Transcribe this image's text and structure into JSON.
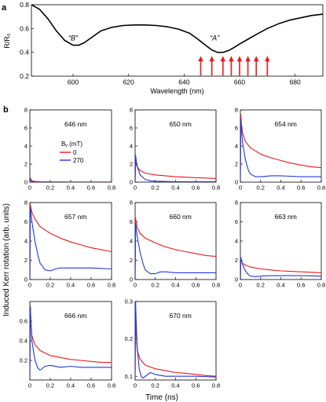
{
  "figure": {
    "panel_a_label": "a",
    "panel_b_label": "b",
    "shared_ylabel": "Induced Kerr rotation (arb. units)",
    "shared_xlabel": "Time (ns)"
  },
  "chart_data": [
    {
      "type": "line",
      "panel": "a",
      "xlabel": "Wavelength (nm)",
      "ylabel": "R/R₀",
      "xlim": [
        585,
        690
      ],
      "ylim": [
        0.2,
        0.8
      ],
      "xticks": [
        600,
        620,
        640,
        660,
        680
      ],
      "yticks": [
        0.2,
        0.4,
        0.6,
        0.8
      ],
      "annotations": [
        {
          "text": "“B”",
          "x": 600,
          "y": 0.5
        },
        {
          "text": "“A”",
          "x": 651,
          "y": 0.5
        }
      ],
      "arrow_wavelengths": [
        646,
        650,
        654,
        657,
        660,
        663,
        666,
        670
      ],
      "arrow_color": "#e8191c",
      "series": [
        {
          "color": "#000000",
          "x": [
            585,
            588,
            591,
            594,
            597,
            600,
            602,
            604,
            607,
            610,
            614,
            618,
            622,
            626,
            630,
            634,
            638,
            642,
            645,
            648,
            650,
            652,
            654,
            656,
            658,
            660,
            663,
            666,
            670,
            674,
            678,
            682,
            686,
            690
          ],
          "y": [
            0.8,
            0.76,
            0.68,
            0.58,
            0.5,
            0.46,
            0.46,
            0.48,
            0.53,
            0.58,
            0.61,
            0.625,
            0.63,
            0.63,
            0.625,
            0.615,
            0.595,
            0.56,
            0.51,
            0.455,
            0.42,
            0.4,
            0.4,
            0.415,
            0.44,
            0.47,
            0.51,
            0.55,
            0.6,
            0.64,
            0.67,
            0.69,
            0.71,
            0.72
          ]
        }
      ]
    },
    {
      "type": "line",
      "panel": "b",
      "title": "646 nm",
      "xlim": [
        0,
        0.8
      ],
      "ylim": [
        0,
        8
      ],
      "xticks": [
        0,
        0.2,
        0.4,
        0.6,
        0.8
      ],
      "yticks": [
        0,
        2,
        4,
        6,
        8
      ],
      "legend": {
        "title": "Bᵧ (mT)",
        "entries": [
          "0",
          "270"
        ]
      },
      "series": [
        {
          "name": "0",
          "color": "#e8191c",
          "x": [
            -0.01,
            0,
            0.005,
            0.01,
            0.02,
            0.05,
            0.1,
            0.2,
            0.4,
            0.6,
            0.8
          ],
          "y": [
            0,
            0,
            0.5,
            0.3,
            0.15,
            0.08,
            0.05,
            0.03,
            0.02,
            0.02,
            0.02
          ]
        },
        {
          "name": "270",
          "color": "#2338d6",
          "x": [
            -0.01,
            0,
            0.005,
            0.01,
            0.02,
            0.05,
            0.1,
            0.2,
            0.4,
            0.6,
            0.8
          ],
          "y": [
            0,
            0,
            0.4,
            0.2,
            0.05,
            0.02,
            0.01,
            0.01,
            0,
            0,
            0
          ]
        }
      ]
    },
    {
      "type": "line",
      "panel": "b",
      "title": "650 nm",
      "xlim": [
        0,
        0.8
      ],
      "ylim": [
        0,
        8
      ],
      "xticks": [
        0,
        0.2,
        0.4,
        0.6,
        0.8
      ],
      "yticks": [
        0,
        2,
        4,
        6,
        8
      ],
      "series": [
        {
          "color": "#e8191c",
          "x": [
            -0.01,
            0,
            0.005,
            0.01,
            0.02,
            0.05,
            0.1,
            0.2,
            0.3,
            0.4,
            0.5,
            0.6,
            0.7,
            0.8
          ],
          "y": [
            0,
            0,
            2.2,
            2.0,
            1.7,
            1.3,
            1.0,
            0.8,
            0.7,
            0.6,
            0.55,
            0.5,
            0.45,
            0.4
          ]
        },
        {
          "color": "#2338d6",
          "x": [
            -0.01,
            0,
            0.005,
            0.01,
            0.02,
            0.05,
            0.1,
            0.15,
            0.2,
            0.3,
            0.4,
            0.6,
            0.8
          ],
          "y": [
            0,
            0,
            3.0,
            2.5,
            1.8,
            0.8,
            0.3,
            0.15,
            0.1,
            0.08,
            0.05,
            0.05,
            0.05
          ]
        }
      ]
    },
    {
      "type": "line",
      "panel": "b",
      "title": "654 nm",
      "xlim": [
        0,
        0.8
      ],
      "ylim": [
        0,
        8
      ],
      "xticks": [
        0,
        0.2,
        0.4,
        0.6,
        0.8
      ],
      "yticks": [
        0,
        2,
        4,
        6,
        8
      ],
      "series": [
        {
          "color": "#e8191c",
          "x": [
            -0.01,
            0,
            0.005,
            0.01,
            0.02,
            0.05,
            0.1,
            0.2,
            0.3,
            0.4,
            0.5,
            0.6,
            0.7,
            0.8
          ],
          "y": [
            0,
            0,
            7.5,
            6.5,
            5.5,
            4.5,
            3.8,
            3.1,
            2.7,
            2.4,
            2.1,
            1.9,
            1.7,
            1.6
          ]
        },
        {
          "color": "#2338d6",
          "x": [
            -0.01,
            0,
            0.005,
            0.01,
            0.02,
            0.05,
            0.08,
            0.1,
            0.15,
            0.2,
            0.3,
            0.4,
            0.5,
            0.6,
            0.8
          ],
          "y": [
            0,
            0,
            7.0,
            6.0,
            4.5,
            2.5,
            1.3,
            0.9,
            0.6,
            0.6,
            0.7,
            0.7,
            0.65,
            0.6,
            0.6
          ]
        }
      ]
    },
    {
      "type": "line",
      "panel": "b",
      "title": "657 nm",
      "xlim": [
        0,
        0.8
      ],
      "ylim": [
        0,
        8
      ],
      "xticks": [
        0,
        0.2,
        0.4,
        0.6,
        0.8
      ],
      "yticks": [
        0,
        2,
        4,
        6,
        8
      ],
      "series": [
        {
          "color": "#e8191c",
          "x": [
            -0.01,
            0,
            0.005,
            0.01,
            0.02,
            0.05,
            0.1,
            0.2,
            0.3,
            0.4,
            0.5,
            0.6,
            0.7,
            0.8
          ],
          "y": [
            0,
            0,
            7.8,
            7.5,
            7.0,
            6.3,
            5.5,
            4.8,
            4.3,
            3.9,
            3.6,
            3.3,
            3.1,
            2.9
          ]
        },
        {
          "color": "#2338d6",
          "x": [
            -0.01,
            0,
            0.005,
            0.01,
            0.02,
            0.05,
            0.08,
            0.1,
            0.15,
            0.2,
            0.25,
            0.3,
            0.4,
            0.6,
            0.8
          ],
          "y": [
            0,
            0,
            7.5,
            7.0,
            6.0,
            4.0,
            2.5,
            1.7,
            1.0,
            0.9,
            1.1,
            1.2,
            1.2,
            1.2,
            1.1
          ]
        }
      ]
    },
    {
      "type": "line",
      "panel": "b",
      "title": "660 nm",
      "xlim": [
        0,
        0.8
      ],
      "ylim": [
        0,
        8
      ],
      "xticks": [
        0,
        0.2,
        0.4,
        0.6,
        0.8
      ],
      "yticks": [
        0,
        2,
        4,
        6,
        8
      ],
      "series": [
        {
          "color": "#e8191c",
          "x": [
            -0.01,
            0,
            0.005,
            0.01,
            0.02,
            0.05,
            0.1,
            0.2,
            0.3,
            0.4,
            0.5,
            0.6,
            0.7,
            0.8
          ],
          "y": [
            0,
            0,
            6.4,
            6.0,
            5.4,
            4.8,
            4.3,
            3.8,
            3.4,
            3.1,
            2.9,
            2.7,
            2.5,
            2.4
          ]
        },
        {
          "color": "#2338d6",
          "x": [
            -0.01,
            0,
            0.005,
            0.01,
            0.02,
            0.05,
            0.08,
            0.1,
            0.15,
            0.2,
            0.25,
            0.3,
            0.4,
            0.6,
            0.8
          ],
          "y": [
            0,
            0,
            5.8,
            5.3,
            4.5,
            2.8,
            1.6,
            1.0,
            0.6,
            0.6,
            0.8,
            0.8,
            0.7,
            0.7,
            0.7
          ]
        }
      ]
    },
    {
      "type": "line",
      "panel": "b",
      "title": "663 nm",
      "xlim": [
        0,
        0.8
      ],
      "ylim": [
        0,
        8
      ],
      "xticks": [
        0,
        0.2,
        0.4,
        0.6,
        0.8
      ],
      "yticks": [
        0,
        2,
        4,
        6,
        8
      ],
      "series": [
        {
          "color": "#e8191c",
          "x": [
            -0.01,
            0,
            0.005,
            0.01,
            0.02,
            0.05,
            0.1,
            0.2,
            0.3,
            0.4,
            0.5,
            0.6,
            0.7,
            0.8
          ],
          "y": [
            0,
            0,
            2.0,
            1.9,
            1.7,
            1.5,
            1.3,
            1.1,
            1.0,
            0.9,
            0.85,
            0.8,
            0.75,
            0.7
          ]
        },
        {
          "color": "#2338d6",
          "x": [
            -0.01,
            0,
            0.005,
            0.01,
            0.02,
            0.05,
            0.08,
            0.1,
            0.15,
            0.2,
            0.3,
            0.4,
            0.6,
            0.8
          ],
          "y": [
            0,
            0,
            2.3,
            2.0,
            1.6,
            0.9,
            0.5,
            0.35,
            0.3,
            0.35,
            0.4,
            0.4,
            0.4,
            0.35
          ]
        }
      ]
    },
    {
      "type": "line",
      "panel": "b",
      "title": "666 nm",
      "xlim": [
        0,
        0.8
      ],
      "ylim": [
        0,
        0.8
      ],
      "xticks": [
        0,
        0.2,
        0.4,
        0.6,
        0.8
      ],
      "yticks": [
        0.2,
        0.4,
        0.6
      ],
      "series": [
        {
          "color": "#e8191c",
          "x": [
            -0.01,
            0,
            0.005,
            0.01,
            0.02,
            0.05,
            0.1,
            0.2,
            0.3,
            0.4,
            0.5,
            0.6,
            0.7,
            0.8
          ],
          "y": [
            0.02,
            0.02,
            0.75,
            0.6,
            0.45,
            0.36,
            0.3,
            0.25,
            0.23,
            0.21,
            0.2,
            0.19,
            0.18,
            0.18
          ]
        },
        {
          "color": "#2338d6",
          "x": [
            -0.01,
            0,
            0.005,
            0.01,
            0.02,
            0.05,
            0.08,
            0.1,
            0.15,
            0.2,
            0.3,
            0.4,
            0.5,
            0.6,
            0.8
          ],
          "y": [
            0.02,
            0.02,
            0.75,
            0.6,
            0.4,
            0.2,
            0.12,
            0.1,
            0.14,
            0.15,
            0.13,
            0.14,
            0.13,
            0.13,
            0.13
          ]
        }
      ]
    },
    {
      "type": "line",
      "panel": "b",
      "title": "670 nm",
      "xlim": [
        0,
        0.8
      ],
      "ylim": [
        0.09,
        0.3
      ],
      "xticks": [
        0,
        0.2,
        0.4,
        0.6,
        0.8
      ],
      "yticks": [
        0.1,
        0.2,
        0.3
      ],
      "series": [
        {
          "color": "#e8191c",
          "x": [
            -0.01,
            0,
            0.005,
            0.01,
            0.02,
            0.05,
            0.1,
            0.2,
            0.3,
            0.4,
            0.5,
            0.6,
            0.7,
            0.8
          ],
          "y": [
            0.095,
            0.095,
            0.28,
            0.22,
            0.17,
            0.145,
            0.13,
            0.12,
            0.115,
            0.11,
            0.108,
            0.105,
            0.102,
            0.1
          ]
        },
        {
          "color": "#2338d6",
          "x": [
            -0.01,
            0,
            0.005,
            0.01,
            0.02,
            0.04,
            0.06,
            0.08,
            0.1,
            0.15,
            0.2,
            0.3,
            0.4,
            0.6,
            0.8
          ],
          "y": [
            0.095,
            0.095,
            0.3,
            0.25,
            0.18,
            0.12,
            0.1,
            0.095,
            0.1,
            0.11,
            0.105,
            0.1,
            0.1,
            0.1,
            0.098
          ]
        }
      ]
    }
  ]
}
